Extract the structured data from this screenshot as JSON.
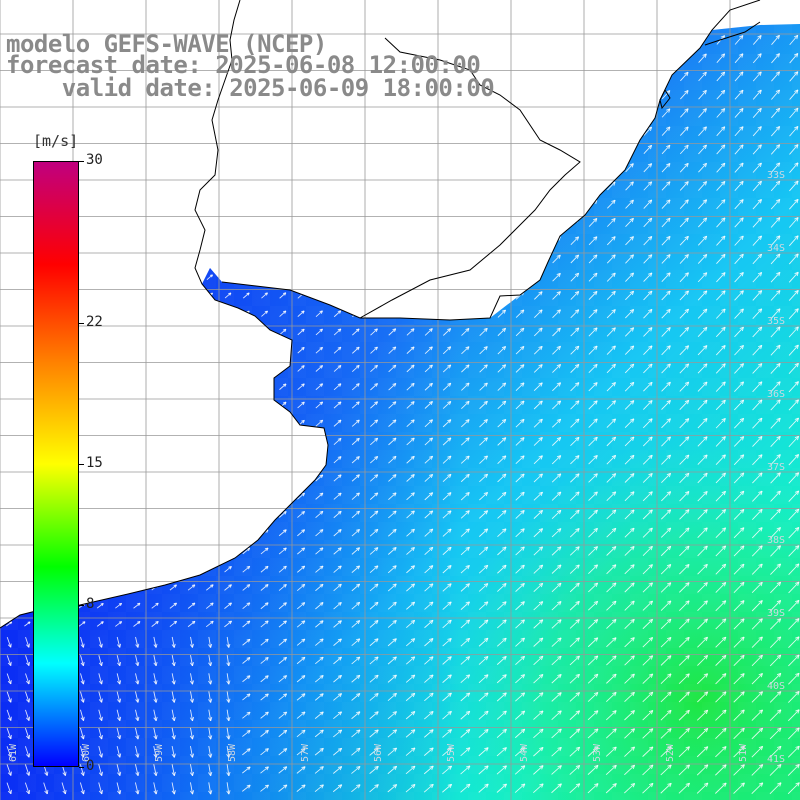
{
  "title": {
    "line1": "modelo GEFS-WAVE (NCEP)",
    "line2": "forecast date: 2025-06-08 12:00:00",
    "line3": "valid date: 2025-06-09 18:00:00"
  },
  "colorbar": {
    "unit": "[m/s]",
    "ticks": [
      "30",
      "22",
      "15",
      "8",
      "0"
    ],
    "tick_values": [
      30,
      22,
      15,
      8,
      0
    ],
    "min": 0,
    "max": 30,
    "colors": [
      "#0000ff",
      "#00ffff",
      "#00ff00",
      "#ffff00",
      "#ff8000",
      "#ff0000",
      "#c0007f"
    ]
  },
  "axes": {
    "lat_labels": [
      "33S",
      "34S",
      "35S",
      "36S",
      "37S",
      "38S",
      "39S",
      "40S",
      "41S"
    ],
    "lon_labels": [
      "61W",
      "60W",
      "59W",
      "58W",
      "57W",
      "56W",
      "55W",
      "54W",
      "53W",
      "52W",
      "51W"
    ]
  },
  "field": {
    "variable": "wind speed",
    "flow_direction": "toward northeast",
    "speed_range_ms": [
      2,
      12
    ]
  },
  "colors": {
    "land": "#ffffff",
    "grid": "#999999",
    "coast": "#000000",
    "title_text": "#8a8a8a"
  }
}
